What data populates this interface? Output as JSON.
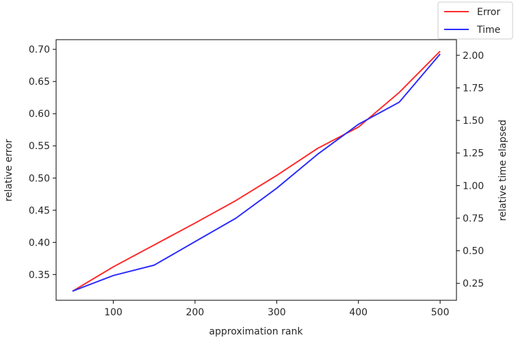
{
  "chart_data": {
    "type": "line",
    "xlabel": "approximation rank",
    "ylabel_left": "relative error",
    "ylabel_right": "relative time elapsed",
    "xlim": [
      30,
      520
    ],
    "ylim_left": [
      0.31,
      0.715
    ],
    "ylim_right": [
      0.12,
      2.12
    ],
    "x_ticks": [
      100,
      200,
      300,
      400,
      500
    ],
    "y_ticks_left": [
      0.35,
      0.4,
      0.45,
      0.5,
      0.55,
      0.6,
      0.65,
      0.7
    ],
    "y_ticks_right": [
      0.25,
      0.5,
      0.75,
      1.0,
      1.25,
      1.5,
      1.75,
      2.0
    ],
    "legend_position": "top-right",
    "series": [
      {
        "name": "Error",
        "axis": "left",
        "color": "#ff2a2a",
        "x": [
          50,
          100,
          150,
          200,
          250,
          300,
          350,
          400,
          450,
          500
        ],
        "y": [
          0.324,
          0.362,
          0.396,
          0.43,
          0.465,
          0.504,
          0.546,
          0.579,
          0.633,
          0.697
        ]
      },
      {
        "name": "Time",
        "axis": "right",
        "color": "#2a2aff",
        "x": [
          50,
          100,
          150,
          200,
          250,
          300,
          350,
          400,
          450,
          500
        ],
        "y": [
          0.19,
          0.31,
          0.39,
          0.57,
          0.75,
          0.98,
          1.24,
          1.47,
          1.64,
          2.01
        ]
      }
    ]
  }
}
